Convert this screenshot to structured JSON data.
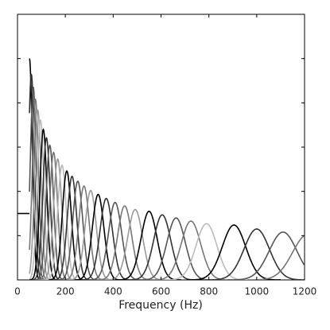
{
  "chart_data": {
    "type": "filterbank",
    "xlabel": "Frequency (Hz)",
    "xlim": [
      0,
      1200
    ],
    "xticks": [
      0,
      200,
      400,
      600,
      800,
      1000,
      1200
    ],
    "ylim": [
      0,
      6
    ],
    "yticks": [
      1,
      2,
      3,
      4,
      5
    ],
    "level": {
      "x": [
        0,
        50
      ],
      "y": [
        1.5,
        1.5
      ],
      "color": "#000000"
    },
    "series": [
      {
        "center": 50,
        "peak": 5.0,
        "bandwidth": 30,
        "color": "#000000"
      },
      {
        "center": 58,
        "peak": 4.64,
        "bandwidth": 31,
        "color": "#333333"
      },
      {
        "center": 66,
        "peak": 4.35,
        "bandwidth": 32,
        "color": "#555555"
      },
      {
        "center": 75,
        "peak": 4.08,
        "bandwidth": 33,
        "color": "#777777"
      },
      {
        "center": 85,
        "peak": 3.83,
        "bandwidth": 34,
        "color": "#999999"
      },
      {
        "center": 96,
        "peak": 3.61,
        "bandwidth": 35,
        "color": "#bbbbbb"
      },
      {
        "center": 108,
        "peak": 3.4,
        "bandwidth": 36,
        "color": "#000000"
      },
      {
        "center": 121,
        "peak": 3.21,
        "bandwidth": 38,
        "color": "#333333"
      },
      {
        "center": 135,
        "peak": 3.04,
        "bandwidth": 39,
        "color": "#555555"
      },
      {
        "center": 151,
        "peak": 2.88,
        "bandwidth": 41,
        "color": "#777777"
      },
      {
        "center": 168,
        "peak": 2.73,
        "bandwidth": 43,
        "color": "#999999"
      },
      {
        "center": 186,
        "peak": 2.59,
        "bandwidth": 45,
        "color": "#bbbbbb"
      },
      {
        "center": 206,
        "peak": 2.46,
        "bandwidth": 47,
        "color": "#000000"
      },
      {
        "center": 228,
        "peak": 2.34,
        "bandwidth": 49,
        "color": "#333333"
      },
      {
        "center": 252,
        "peak": 2.23,
        "bandwidth": 52,
        "color": "#555555"
      },
      {
        "center": 278,
        "peak": 2.12,
        "bandwidth": 55,
        "color": "#777777"
      },
      {
        "center": 306,
        "peak": 2.02,
        "bandwidth": 58,
        "color": "#999999"
      },
      {
        "center": 337,
        "peak": 1.93,
        "bandwidth": 61,
        "color": "#000000"
      },
      {
        "center": 371,
        "peak": 1.84,
        "bandwidth": 65,
        "color": "#333333"
      },
      {
        "center": 408,
        "peak": 1.75,
        "bandwidth": 69,
        "color": "#555555"
      },
      {
        "center": 448,
        "peak": 1.67,
        "bandwidth": 73,
        "color": "#777777"
      },
      {
        "center": 492,
        "peak": 1.59,
        "bandwidth": 78,
        "color": "#999999"
      },
      {
        "center": 550,
        "peak": 1.55,
        "bandwidth": 84,
        "color": "#000000"
      },
      {
        "center": 605,
        "peak": 1.47,
        "bandwidth": 90,
        "color": "#333333"
      },
      {
        "center": 663,
        "peak": 1.4,
        "bandwidth": 96,
        "color": "#555555"
      },
      {
        "center": 725,
        "peak": 1.33,
        "bandwidth": 103,
        "color": "#777777"
      },
      {
        "center": 790,
        "peak": 1.27,
        "bandwidth": 110,
        "color": "#bbbbbb"
      },
      {
        "center": 905,
        "peak": 1.24,
        "bandwidth": 122,
        "color": "#000000"
      },
      {
        "center": 1000,
        "peak": 1.15,
        "bandwidth": 133,
        "color": "#333333"
      },
      {
        "center": 1110,
        "peak": 1.08,
        "bandwidth": 145,
        "color": "#555555"
      },
      {
        "center": 1212,
        "peak": 1.02,
        "bandwidth": 156,
        "color": "#777777"
      }
    ]
  }
}
